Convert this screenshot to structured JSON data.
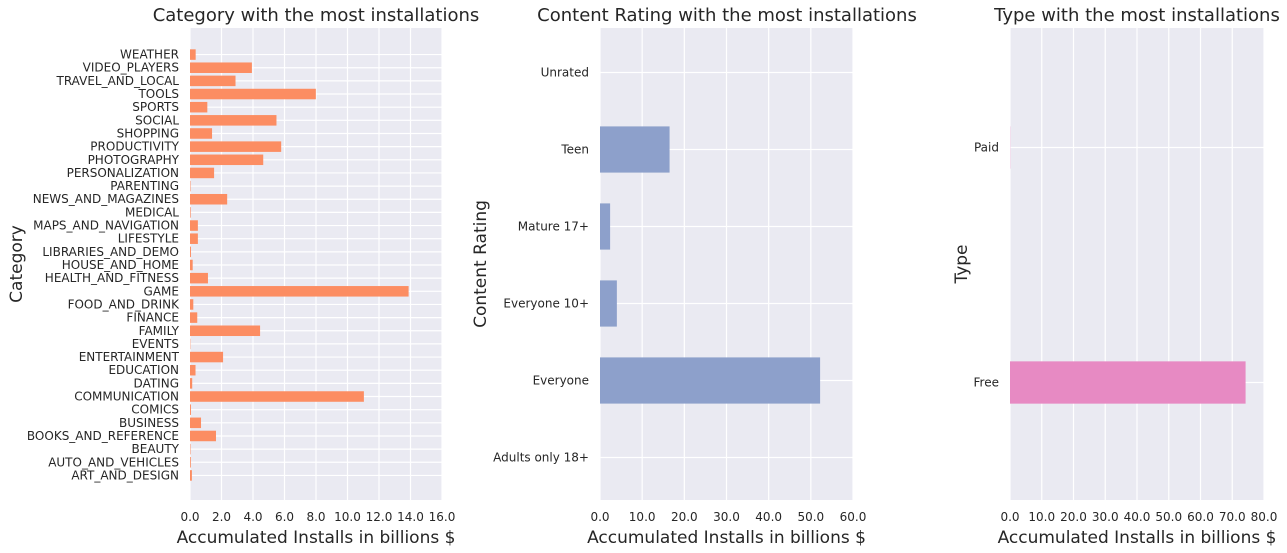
{
  "chart_data": [
    {
      "type": "bar",
      "orientation": "horizontal",
      "title": "Category with the most installations",
      "xlabel": "Accumulated Installs in billions $",
      "ylabel": "Category",
      "xlim": [
        0,
        16
      ],
      "xticks": [
        "0.0",
        "2.0",
        "4.0",
        "6.0",
        "8.0",
        "10.0",
        "12.0",
        "14.0",
        "16.0"
      ],
      "grid": true,
      "color": "#fc8d62",
      "categories": [
        "ART_AND_DESIGN",
        "AUTO_AND_VEHICLES",
        "BEAUTY",
        "BOOKS_AND_REFERENCE",
        "BUSINESS",
        "COMICS",
        "COMMUNICATION",
        "DATING",
        "EDUCATION",
        "ENTERTAINMENT",
        "EVENTS",
        "FAMILY",
        "FINANCE",
        "FOOD_AND_DRINK",
        "GAME",
        "HEALTH_AND_FITNESS",
        "HOUSE_AND_HOME",
        "LIBRARIES_AND_DEMO",
        "LIFESTYLE",
        "MAPS_AND_NAVIGATION",
        "MEDICAL",
        "NEWS_AND_MAGAZINES",
        "PARENTING",
        "PERSONALIZATION",
        "PHOTOGRAPHY",
        "PRODUCTIVITY",
        "SHOPPING",
        "SOCIAL",
        "SPORTS",
        "TOOLS",
        "TRAVEL_AND_LOCAL",
        "VIDEO_PLAYERS",
        "WEATHER"
      ],
      "values": [
        0.12,
        0.05,
        0.03,
        1.65,
        0.7,
        0.06,
        11.04,
        0.14,
        0.35,
        2.1,
        0.02,
        4.45,
        0.46,
        0.21,
        13.88,
        1.14,
        0.17,
        0.06,
        0.5,
        0.5,
        0.04,
        2.36,
        0.03,
        1.53,
        4.65,
        5.79,
        1.4,
        5.49,
        1.1,
        7.99,
        2.89,
        3.93,
        0.36
      ]
    },
    {
      "type": "bar",
      "orientation": "horizontal",
      "title": "Content Rating with the most installations",
      "xlabel": "Accumulated Installs in billions $",
      "ylabel": "Content Rating",
      "xlim": [
        0,
        60
      ],
      "xticks": [
        "0.0",
        "10.0",
        "20.0",
        "30.0",
        "40.0",
        "50.0",
        "60.0"
      ],
      "grid": true,
      "color": "#8da0cb",
      "categories": [
        "Adults only 18+",
        "Everyone",
        "Everyone 10+",
        "Mature 17+",
        "Teen",
        "Unrated"
      ],
      "values": [
        0.002,
        52.2,
        4.0,
        2.4,
        16.5,
        0.0001
      ]
    },
    {
      "type": "bar",
      "orientation": "horizontal",
      "title": "Type with the most installations",
      "xlabel": "Accumulated Installs in billions $",
      "ylabel": "Type",
      "xlim": [
        0,
        80
      ],
      "xticks": [
        "0.0",
        "10.0",
        "20.0",
        "30.0",
        "40.0",
        "50.0",
        "60.0",
        "70.0",
        "80.0"
      ],
      "grid": true,
      "color": "#e78ac3",
      "categories": [
        "Free",
        "Paid"
      ],
      "values": [
        74.2,
        0.06
      ]
    }
  ]
}
